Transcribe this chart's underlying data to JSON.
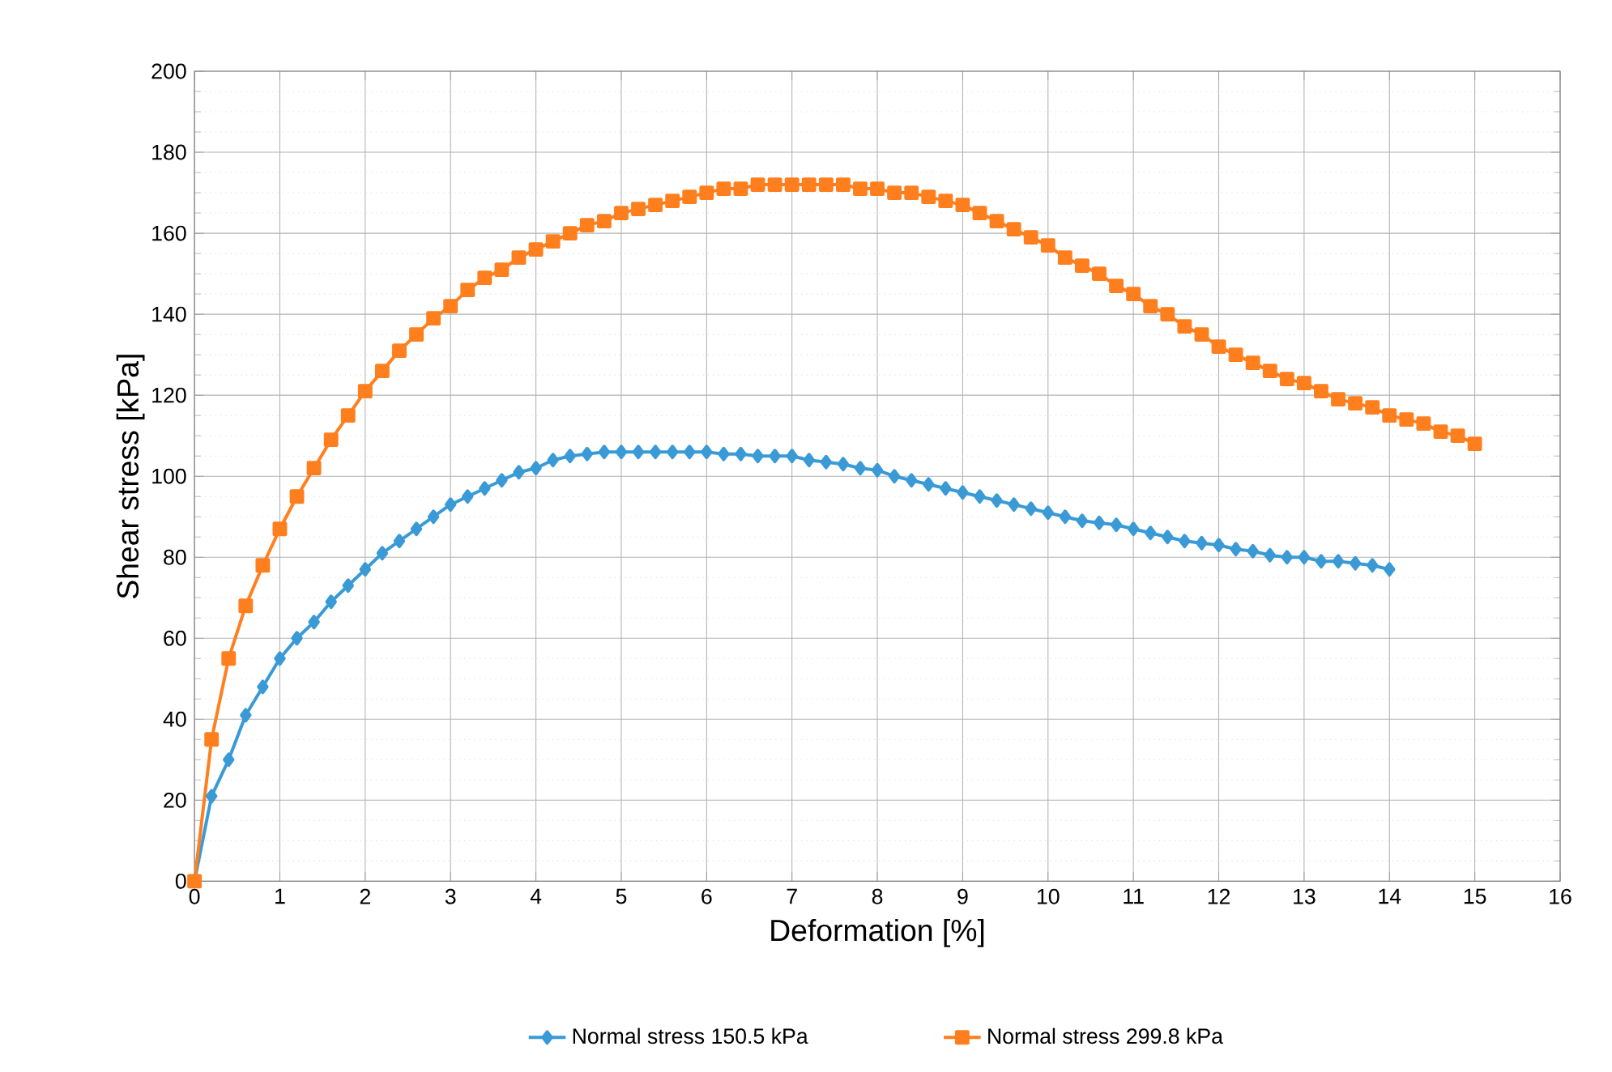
{
  "chart_data": {
    "type": "line",
    "xlabel": "Deformation [%]",
    "ylabel": "Shear stress [kPa]",
    "xlim": [
      0,
      16
    ],
    "xticks": [
      0,
      1,
      2,
      3,
      4,
      5,
      6,
      7,
      8,
      9,
      10,
      11,
      12,
      13,
      14,
      15,
      16
    ],
    "ylim": [
      0,
      200
    ],
    "yticks": [
      0,
      20,
      40,
      60,
      80,
      100,
      120,
      140,
      160,
      180,
      200
    ],
    "grid": true,
    "legend": "bottom",
    "series": [
      {
        "name": "Normal stress 150.5 kPa",
        "color": "#3a9ad6",
        "marker": "diamond",
        "x": [
          0,
          0.2,
          0.4,
          0.6,
          0.8,
          1.0,
          1.2,
          1.4,
          1.6,
          1.8,
          2.0,
          2.2,
          2.4,
          2.6,
          2.8,
          3.0,
          3.2,
          3.4,
          3.6,
          3.8,
          4.0,
          4.2,
          4.4,
          4.6,
          4.8,
          5.0,
          5.2,
          5.4,
          5.6,
          5.8,
          6.0,
          6.2,
          6.4,
          6.6,
          6.8,
          7.0,
          7.2,
          7.4,
          7.6,
          7.8,
          8.0,
          8.2,
          8.4,
          8.6,
          8.8,
          9.0,
          9.2,
          9.4,
          9.6,
          9.8,
          10.0,
          10.2,
          10.4,
          10.6,
          10.8,
          11.0,
          11.2,
          11.4,
          11.6,
          11.8,
          12.0,
          12.2,
          12.4,
          12.6,
          12.8,
          13.0,
          13.2,
          13.4,
          13.6,
          13.8,
          14.0
        ],
        "values": [
          0,
          21,
          30,
          41,
          48,
          55,
          60,
          64,
          69,
          73,
          77,
          81,
          84,
          87,
          90,
          93,
          95,
          97,
          99,
          101,
          102,
          104,
          105,
          105.5,
          106,
          106,
          106,
          106,
          106,
          106,
          106,
          105.5,
          105.5,
          105,
          105,
          105,
          104,
          103.5,
          103,
          102,
          101.5,
          100,
          99,
          98,
          97,
          96,
          95,
          94,
          93,
          92,
          91,
          90,
          89,
          88.5,
          88,
          87,
          86,
          85,
          84,
          83.5,
          83,
          82,
          81.5,
          80.5,
          80,
          80,
          79,
          79,
          78.5,
          78,
          77
        ]
      },
      {
        "name": "Normal stress 299.8 kPa",
        "color": "#ff7f1e",
        "marker": "square",
        "x": [
          0,
          0.2,
          0.4,
          0.6,
          0.8,
          1.0,
          1.2,
          1.4,
          1.6,
          1.8,
          2.0,
          2.2,
          2.4,
          2.6,
          2.8,
          3.0,
          3.2,
          3.4,
          3.6,
          3.8,
          4.0,
          4.2,
          4.4,
          4.6,
          4.8,
          5.0,
          5.2,
          5.4,
          5.6,
          5.8,
          6.0,
          6.2,
          6.4,
          6.6,
          6.8,
          7.0,
          7.2,
          7.4,
          7.6,
          7.8,
          8.0,
          8.2,
          8.4,
          8.6,
          8.8,
          9.0,
          9.2,
          9.4,
          9.6,
          9.8,
          10.0,
          10.2,
          10.4,
          10.6,
          10.8,
          11.0,
          11.2,
          11.4,
          11.6,
          11.8,
          12.0,
          12.2,
          12.4,
          12.6,
          12.8,
          13.0,
          13.2,
          13.4,
          13.6,
          13.8,
          14.0,
          14.2,
          14.4,
          14.6,
          14.8,
          15.0
        ],
        "values": [
          0,
          35,
          55,
          68,
          78,
          87,
          95,
          102,
          109,
          115,
          121,
          126,
          131,
          135,
          139,
          142,
          146,
          149,
          151,
          154,
          156,
          158,
          160,
          162,
          163,
          165,
          166,
          167,
          168,
          169,
          170,
          171,
          171,
          172,
          172,
          172,
          172,
          172,
          172,
          171,
          171,
          170,
          170,
          169,
          168,
          167,
          165,
          163,
          161,
          159,
          157,
          154,
          152,
          150,
          147,
          145,
          142,
          140,
          137,
          135,
          132,
          130,
          128,
          126,
          124,
          123,
          121,
          119,
          118,
          117,
          115,
          114,
          113,
          111,
          110,
          108
        ]
      }
    ]
  }
}
